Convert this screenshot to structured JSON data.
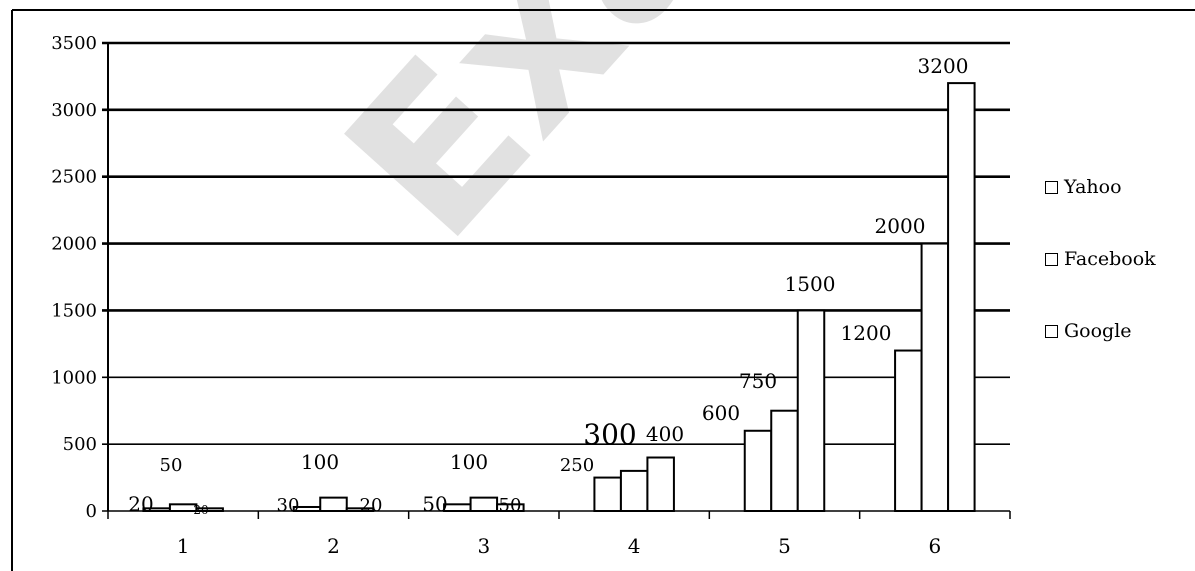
{
  "chart_data": {
    "type": "bar",
    "categories": [
      "1",
      "2",
      "3",
      "4",
      "5",
      "6"
    ],
    "series": [
      {
        "name": "Yahoo",
        "values": [
          20,
          30,
          50,
          250,
          600,
          1200
        ]
      },
      {
        "name": "Facebook",
        "values": [
          50,
          100,
          100,
          300,
          750,
          2000
        ]
      },
      {
        "name": "Google",
        "values": [
          20,
          20,
          50,
          400,
          1500,
          3200
        ]
      }
    ],
    "data_labels": [
      [
        "20",
        "50",
        "20"
      ],
      [
        "30",
        "100",
        "20"
      ],
      [
        "50",
        "100",
        "50"
      ],
      [
        "250",
        "300",
        "400"
      ],
      [
        "600",
        "750",
        "1500"
      ],
      [
        "1200",
        "2000",
        "3200"
      ]
    ],
    "yticks": [
      "0",
      "500",
      "1000",
      "1500",
      "2000",
      "2500",
      "3000",
      "3500"
    ],
    "ylim": [
      0,
      3500
    ],
    "grid": true,
    "legend_position": "right",
    "watermark": "Examra"
  }
}
